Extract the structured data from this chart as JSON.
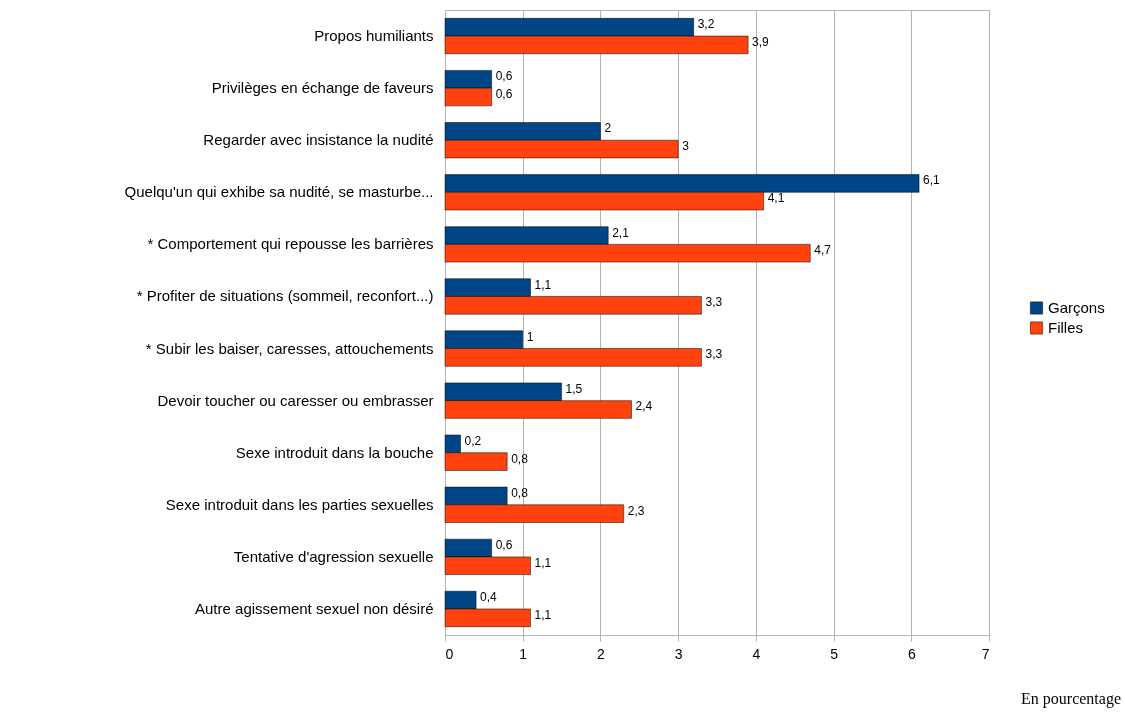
{
  "chart_data": {
    "type": "bar",
    "orientation": "horizontal",
    "categories": [
      "Propos humiliants",
      "Privilèges en échange de faveurs",
      "Regarder avec insistance la nudité",
      "Quelqu'un qui exhibe sa nudité, se masturbe...",
      "* Comportement qui repousse les barrières",
      "* Profiter de situations (sommeil, reconfort...)",
      "* Subir les baiser, caresses, attouchements",
      "Devoir toucher ou caresser ou embrasser",
      "Sexe introduit dans la bouche",
      "Sexe introduit dans les parties sexuelles",
      "Tentative d'agression sexuelle",
      "Autre agissement sexuel non désiré"
    ],
    "series": [
      {
        "name": "Garçons",
        "color": "#004586",
        "values": [
          3.2,
          0.6,
          2,
          6.1,
          2.1,
          1.1,
          1,
          1.5,
          0.2,
          0.8,
          0.6,
          0.4
        ],
        "value_labels": [
          "3,2",
          "0,6",
          "2",
          "6,1",
          "2,1",
          "1,1",
          "1",
          "1,5",
          "0,2",
          "0,8",
          "0,6",
          "0,4"
        ]
      },
      {
        "name": "Filles",
        "color": "#ff420e",
        "values": [
          3.9,
          0.6,
          3,
          4.1,
          4.7,
          3.3,
          3.3,
          2.4,
          0.8,
          2.3,
          1.1,
          1.1
        ],
        "value_labels": [
          "3,9",
          "0,6",
          "3",
          "4,1",
          "4,7",
          "3,3",
          "3,3",
          "2,4",
          "0,8",
          "2,3",
          "1,1",
          "1,1"
        ]
      }
    ],
    "xlim": [
      0,
      7
    ],
    "xticks": [
      0,
      1,
      2,
      3,
      4,
      5,
      6,
      7
    ],
    "grid": "x",
    "legend": "right",
    "annotations": [
      "En pourcentage"
    ]
  }
}
